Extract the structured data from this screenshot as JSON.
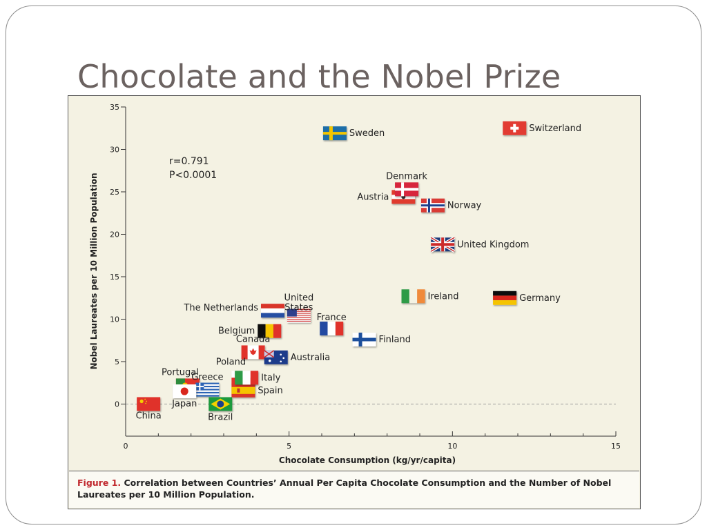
{
  "slide": {
    "title": "Chocolate and the Nobel Prize"
  },
  "figure": {
    "caption_label": "Figure 1.",
    "caption_text": "Correlation between Countries’ Annual Per Capita Chocolate Consumption and the Number of Nobel Laureates per 10 Million Population."
  },
  "chart_data": {
    "type": "scatter",
    "xlabel": "Chocolate Consumption (kg/yr/capita)",
    "ylabel": "Nobel Laureates per 10 Million Population",
    "xlim": [
      0,
      15
    ],
    "ylim": [
      -3,
      35
    ],
    "x_ticks": [
      0,
      5,
      10,
      15
    ],
    "y_ticks": [
      0,
      5,
      10,
      15,
      20,
      25,
      30,
      35
    ],
    "reference_line": {
      "y": 0,
      "style": "dashed"
    },
    "annotations": [
      "r=0.791",
      "P<0.0001"
    ],
    "points": [
      {
        "name": "Switzerland",
        "x": 11.9,
        "y": 32.5
      },
      {
        "name": "Sweden",
        "x": 6.4,
        "y": 31.9
      },
      {
        "name": "Denmark",
        "x": 8.6,
        "y": 25.3
      },
      {
        "name": "Austria",
        "x": 8.5,
        "y": 24.4
      },
      {
        "name": "Norway",
        "x": 9.4,
        "y": 23.4
      },
      {
        "name": "United Kingdom",
        "x": 9.7,
        "y": 18.8
      },
      {
        "name": "Ireland",
        "x": 8.8,
        "y": 12.7
      },
      {
        "name": "Germany",
        "x": 11.6,
        "y": 12.5
      },
      {
        "name": "The Netherlands",
        "x": 4.5,
        "y": 11.0
      },
      {
        "name": "United States",
        "x": 5.3,
        "y": 10.4
      },
      {
        "name": "France",
        "x": 6.3,
        "y": 8.9
      },
      {
        "name": "Belgium",
        "x": 4.4,
        "y": 8.6
      },
      {
        "name": "Finland",
        "x": 7.3,
        "y": 7.6
      },
      {
        "name": "Canada",
        "x": 3.9,
        "y": 6.1
      },
      {
        "name": "Australia",
        "x": 4.6,
        "y": 5.5
      },
      {
        "name": "Poland",
        "x": 3.6,
        "y": 3.1
      },
      {
        "name": "Italy",
        "x": 3.7,
        "y": 3.1
      },
      {
        "name": "Portugal",
        "x": 1.9,
        "y": 2.2
      },
      {
        "name": "Greece",
        "x": 2.5,
        "y": 1.7
      },
      {
        "name": "Spain",
        "x": 3.6,
        "y": 1.6
      },
      {
        "name": "Japan",
        "x": 1.8,
        "y": 1.5
      },
      {
        "name": "China",
        "x": 0.7,
        "y": 0.0
      },
      {
        "name": "Brazil",
        "x": 2.9,
        "y": 0.0
      }
    ]
  }
}
